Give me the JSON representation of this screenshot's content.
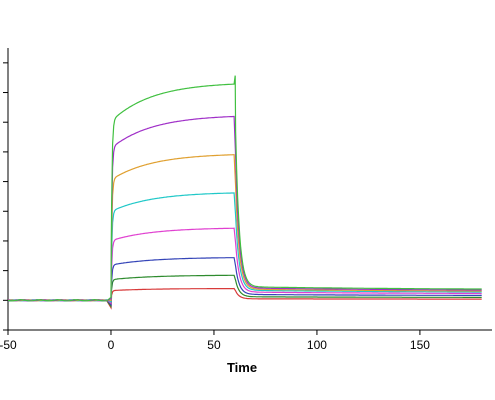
{
  "chart_data": {
    "type": "line",
    "title": "",
    "xlabel": "Time",
    "ylabel": "",
    "xlim": [
      -50,
      185
    ],
    "ylim": [
      -1,
      8.5
    ],
    "x_ticks": [
      -50,
      0,
      50,
      100,
      150
    ],
    "x_tick_labels": [
      "-50",
      "0",
      "50",
      "100",
      "150"
    ],
    "y_ticks": [
      -1,
      0,
      1,
      2,
      3,
      4,
      5,
      6,
      7,
      8
    ],
    "grid": false,
    "legend": "none",
    "baseline_x": [
      -50,
      -1
    ],
    "association_start": 0,
    "dissociation_start": 60,
    "end_time": 180,
    "series": [
      {
        "color": "#d83a3a",
        "plateau": 0.4,
        "tail": 0.05,
        "k_on": 0.25
      },
      {
        "color": "#2e8b2e",
        "plateau": 0.85,
        "tail": 0.12,
        "k_on": 0.25
      },
      {
        "color": "#3545b8",
        "plateau": 1.45,
        "tail": 0.2,
        "k_on": 0.25
      },
      {
        "color": "#e040d0",
        "plateau": 2.45,
        "tail": 0.28,
        "k_on": 0.25
      },
      {
        "color": "#20c8c8",
        "plateau": 3.65,
        "tail": 0.34,
        "k_on": 0.25
      },
      {
        "color": "#e0a030",
        "plateau": 4.95,
        "tail": 0.38,
        "k_on": 0.25
      },
      {
        "color": "#a030c8",
        "plateau": 6.25,
        "tail": 0.42,
        "k_on": 0.25
      },
      {
        "color": "#40c040",
        "plateau": 7.35,
        "tail": 0.46,
        "k_on": 0.9
      }
    ]
  }
}
